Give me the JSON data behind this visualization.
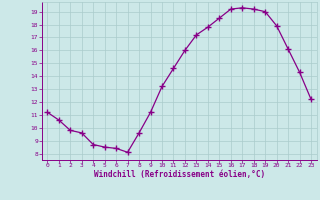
{
  "x": [
    0,
    1,
    2,
    3,
    4,
    5,
    6,
    7,
    8,
    9,
    10,
    11,
    12,
    13,
    14,
    15,
    16,
    17,
    18,
    19,
    20,
    21,
    22,
    23
  ],
  "y": [
    11.2,
    10.6,
    9.8,
    9.6,
    8.7,
    8.5,
    8.4,
    8.1,
    9.6,
    11.2,
    13.2,
    14.6,
    16.0,
    17.2,
    17.8,
    18.5,
    19.2,
    19.3,
    19.2,
    19.0,
    17.9,
    16.1,
    14.3,
    12.2
  ],
  "line_color": "#880088",
  "bg_color": "#cce8e8",
  "grid_color": "#aacccc",
  "xlabel": "Windchill (Refroidissement éolien,°C)",
  "xlim": [
    -0.5,
    23.5
  ],
  "ylim": [
    7.5,
    19.75
  ],
  "yticks": [
    8,
    9,
    10,
    11,
    12,
    13,
    14,
    15,
    16,
    17,
    18,
    19
  ],
  "xticks": [
    0,
    1,
    2,
    3,
    4,
    5,
    6,
    7,
    8,
    9,
    10,
    11,
    12,
    13,
    14,
    15,
    16,
    17,
    18,
    19,
    20,
    21,
    22,
    23
  ],
  "tick_color": "#880088",
  "font_family": "monospace"
}
